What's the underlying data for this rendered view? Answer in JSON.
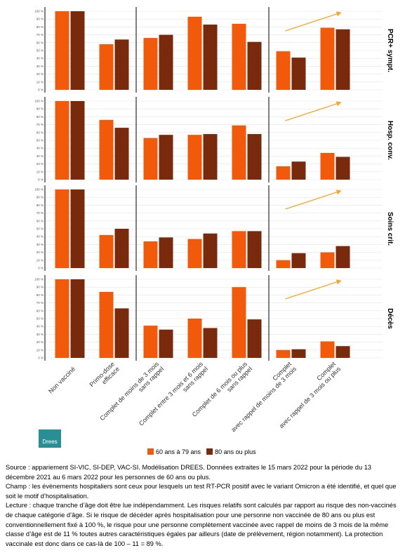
{
  "chart_data": {
    "type": "bar",
    "categories": [
      [
        "Non vacciné"
      ],
      [
        "Primo-dose",
        "efficace"
      ],
      [
        "Complet de moins de 3 mois",
        "sans rappel"
      ],
      [
        "Complet entre 3 mois et 6 mois",
        "sans rappel"
      ],
      [
        "Complet de 6 mois ou plus",
        "sans rappel"
      ],
      [
        "Complet",
        "avec rappel de moins de 3 mois"
      ],
      [
        "Complet",
        "avec rappel de 3 mois ou plus"
      ]
    ],
    "legend": [
      {
        "name": "60 ans à 79 ans",
        "color": "#f05a0a"
      },
      {
        "name": "80 ans ou plus",
        "color": "#7a2a0c"
      }
    ],
    "ylim": [
      0,
      100
    ],
    "yticks": [
      {
        "value": 0,
        "label": "0 %"
      },
      {
        "value": 10,
        "label": "10 %"
      },
      {
        "value": 20,
        "label": "20 %"
      },
      {
        "value": 30,
        "label": "30 %"
      },
      {
        "value": 40,
        "label": "40 %"
      },
      {
        "value": 50,
        "label": "50 %"
      },
      {
        "value": 60,
        "label": "60 %"
      },
      {
        "value": 70,
        "label": "70 %"
      },
      {
        "value": 80,
        "label": "80 %"
      },
      {
        "value": 90,
        "label": "90 %"
      },
      {
        "value": 100,
        "label": "100 %"
      }
    ],
    "grid": true,
    "panels": [
      {
        "label": "PCR+ sympt.",
        "values": [
          [
            100,
            58,
            66,
            93,
            84,
            49,
            79
          ],
          [
            100,
            64,
            70,
            83,
            61,
            41,
            77
          ]
        ]
      },
      {
        "label": "Hosp. conv.",
        "values": [
          [
            100,
            76,
            53,
            57,
            69,
            17,
            34
          ],
          [
            100,
            66,
            57,
            58,
            58,
            23,
            29
          ]
        ]
      },
      {
        "label": "Soins crit.",
        "values": [
          [
            100,
            42,
            34,
            37,
            47,
            10,
            20
          ],
          [
            100,
            50,
            39,
            44,
            47,
            19,
            28
          ]
        ]
      },
      {
        "label": "Décès",
        "values": [
          [
            100,
            84,
            41,
            50,
            90,
            10,
            21
          ],
          [
            100,
            63,
            36,
            38,
            49,
            11,
            15
          ]
        ]
      }
    ]
  },
  "logo": "Drees",
  "notes": [
    "Source : appariement SI-VIC, SI-DEP, VAC-SI. Modélisation DREES. Données extraites le 15 mars 2022 pour la période du 13 décembre 2021 au 6 mars 2022 pour les personnes de 60 ans ou plus.",
    "Champ : les évènements hospitaliers sont ceux pour lesquels un test RT-PCR positif avec le variant Omicron a été identifié, et quel que soit le motif d’hospitalisation.",
    "Lecture : chaque tranche d’âge doit être lue indépendamment. Les risques relatifs sont calculés par rapport au risque des non-vaccinés de chaque catégorie d’âge. Si le risque de décéder après hospitalisation pour une personne non vaccinée de 80 ans ou plus est conventionnellement fixé à 100 %, le risque pour une personne complètement vaccinée avec rappel de moins de 3 mois de la même classe d’âge est de 11 % toutes autres caractéristiques égales par ailleurs (date de prélèvement, région notamment). La protection vaccinale est donc dans ce cas-là de 100 – 11 = 89 %."
  ]
}
